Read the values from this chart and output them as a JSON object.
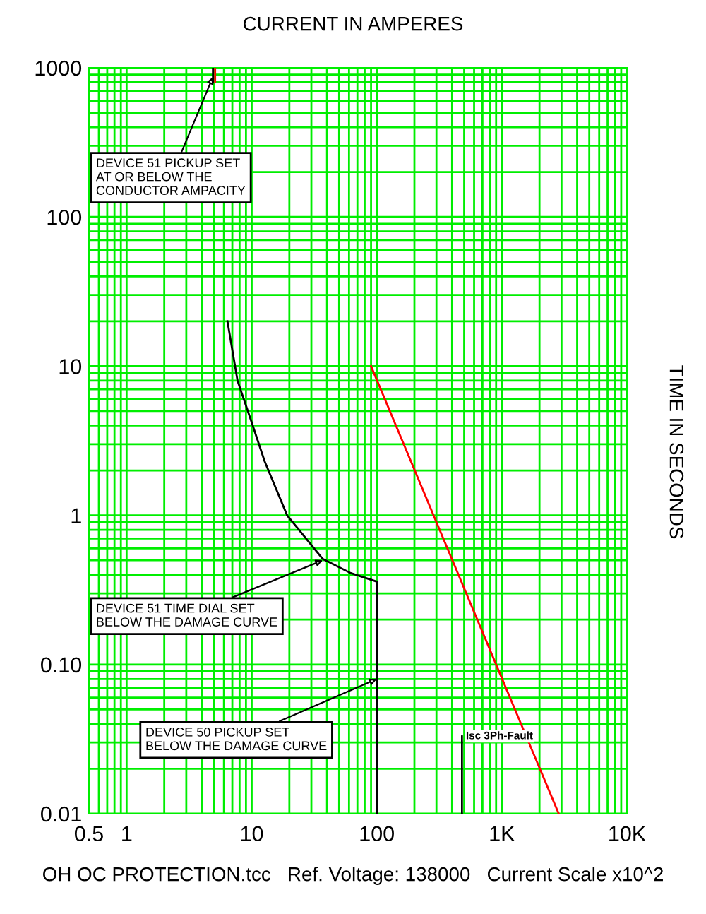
{
  "chart_data": {
    "type": "line",
    "title": "CURRENT IN AMPERES",
    "ylabel": "TIME IN SECONDS",
    "log": "xy",
    "grid": true,
    "xlim": [
      0.5,
      10000
    ],
    "xticks": [
      0.5,
      1,
      10,
      100,
      {
        "value": 1000,
        "label": "1K"
      },
      {
        "value": 10000,
        "label": "10K"
      }
    ],
    "ylim": [
      0.01,
      1000
    ],
    "yticks": [
      0.01,
      {
        "value": 0.1,
        "label": "0.10"
      },
      1,
      10,
      100,
      1000
    ],
    "series": [
      {
        "color": "#000000",
        "x": [
          4.9,
          4.9,
          null,
          6.4,
          7.7,
          10,
          12.7,
          19.2,
          37,
          62,
          100,
          100
        ],
        "values": [
          1000,
          800,
          null,
          20,
          8.0,
          4.2,
          2.3,
          1,
          0.51,
          0.41,
          0.36,
          0.01
        ]
      },
      {
        "color": "#ff0000",
        "x": [
          5.1,
          5.1
        ],
        "values": [
          1000,
          800
        ]
      },
      {
        "color": "#ff0000",
        "x": [
          90,
          1000,
          2850
        ],
        "values": [
          10,
          0.081,
          0.01
        ]
      },
      {
        "color": "#000000",
        "x": [
          480,
          480
        ],
        "values": [
          0.01,
          0.033
        ]
      }
    ],
    "annotations": [
      {
        "text": "DEVICE 51 PICKUP SET\nAT OR BELOW THE\nCONDUCTOR AMPACITY",
        "x": 4.9,
        "y": 870
      },
      {
        "text": "DEVICE 51 TIME DIAL SET\nBELOW THE DAMAGE CURVE",
        "x": 37,
        "y": 0.5
      },
      {
        "text": "DEVICE 50 PICKUP SET\nBELOW THE DAMAGE CURVE",
        "x": 100,
        "y": 0.08
      },
      {
        "text": "Isc 3Ph-Fault",
        "x": 480,
        "y": 0.033
      },
      "OH OC PROTECTION.tcc   Ref. Voltage: 138000   Current Scale x10^2"
    ]
  }
}
